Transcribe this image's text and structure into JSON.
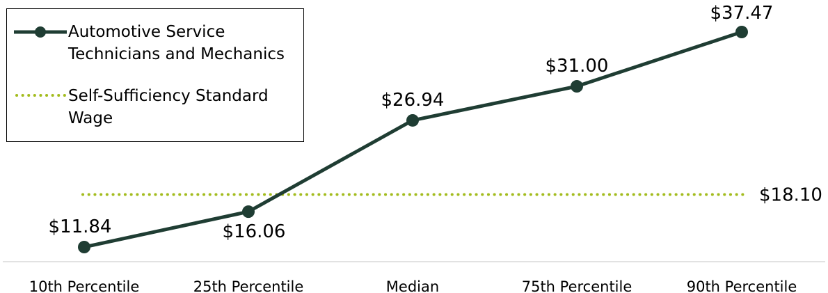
{
  "chart_data": {
    "type": "line",
    "title": "",
    "xlabel": "",
    "ylabel": "",
    "categories": [
      "10th Percentile",
      "25th Percentile",
      "Median",
      "75th Percentile",
      "90th Percentile"
    ],
    "series": [
      {
        "name": "Automotive Service Technicians and Mechanics",
        "values": [
          11.84,
          16.06,
          26.94,
          31.0,
          37.47
        ],
        "labels": [
          "$11.84",
          "$16.06",
          "$26.94",
          "$31.00",
          "$37.47"
        ],
        "color": "#1f3d33",
        "style": "solid-with-markers"
      },
      {
        "name": "Self-Sufficiency Standard Wage",
        "values": [
          18.1,
          18.1,
          18.1,
          18.1,
          18.1
        ],
        "end_label": "$18.10",
        "color": "#a3bc1e",
        "style": "dotted"
      }
    ],
    "ylim": [
      10,
      40
    ],
    "grid": false,
    "legend_position": "top-left"
  }
}
